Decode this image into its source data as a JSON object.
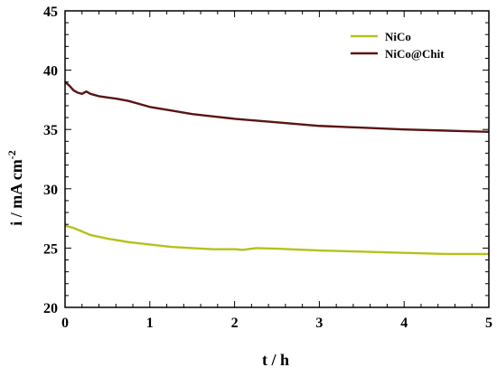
{
  "chart_data": {
    "type": "line",
    "xlabel": "t / h",
    "ylabel_main": "i / mA cm",
    "ylabel_sup": "-2",
    "xlim": [
      0,
      5
    ],
    "ylim": [
      20,
      45
    ],
    "xticks": [
      0,
      1,
      2,
      3,
      4,
      5
    ],
    "yticks": [
      20,
      25,
      30,
      35,
      40,
      45
    ],
    "xtick_labels": [
      "0",
      "1",
      "2",
      "3",
      "4",
      "5"
    ],
    "ytick_labels": [
      "20",
      "25",
      "30",
      "35",
      "40",
      "45"
    ],
    "legend_position": "top-right",
    "series": [
      {
        "name": "NiCo",
        "color": "#b5c11a",
        "x": [
          0,
          0.1,
          0.2,
          0.3,
          0.5,
          0.75,
          1.0,
          1.25,
          1.5,
          1.75,
          2.0,
          2.1,
          2.15,
          2.2,
          2.25,
          2.5,
          3.0,
          3.5,
          4.0,
          4.5,
          5.0
        ],
        "y": [
          26.9,
          26.7,
          26.4,
          26.1,
          25.8,
          25.5,
          25.3,
          25.1,
          25.0,
          24.9,
          24.9,
          24.85,
          24.9,
          24.95,
          25.0,
          24.95,
          24.8,
          24.7,
          24.6,
          24.5,
          24.5
        ]
      },
      {
        "name": "NiCo@Chit",
        "color": "#5a1414",
        "x": [
          0,
          0.05,
          0.1,
          0.15,
          0.2,
          0.25,
          0.3,
          0.4,
          0.5,
          0.6,
          0.75,
          1.0,
          1.25,
          1.5,
          1.75,
          2.0,
          2.5,
          3.0,
          3.5,
          4.0,
          4.5,
          5.0
        ],
        "y": [
          39.0,
          38.7,
          38.3,
          38.1,
          38.0,
          38.2,
          38.0,
          37.8,
          37.7,
          37.6,
          37.4,
          36.9,
          36.6,
          36.3,
          36.1,
          35.9,
          35.6,
          35.3,
          35.15,
          35.0,
          34.9,
          34.8
        ]
      }
    ]
  }
}
